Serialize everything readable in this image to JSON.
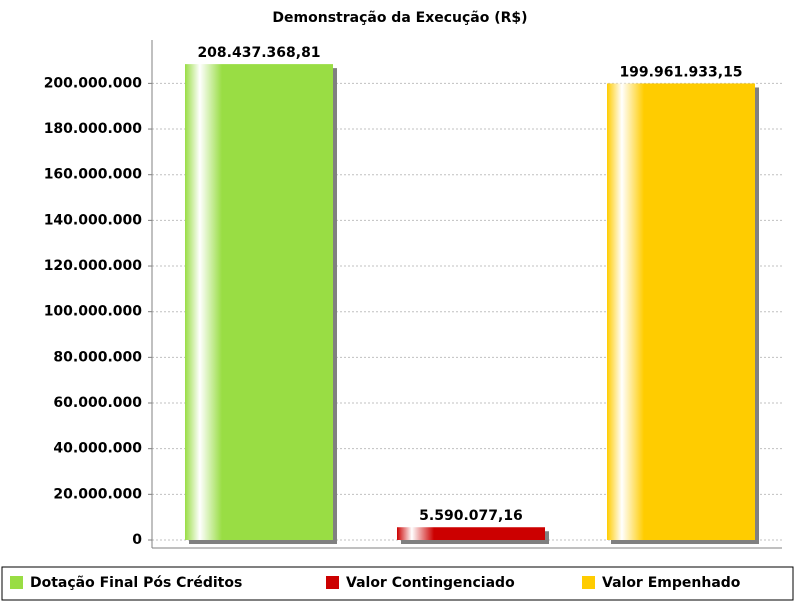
{
  "chart_data": {
    "type": "bar",
    "title": "Demonstração da Execução (R$)",
    "series": [
      {
        "name": "Dotação Final Pós Créditos",
        "color": "#99dd44",
        "values": [
          208437368.81
        ],
        "value_labels": [
          "208.437.368,81"
        ]
      },
      {
        "name": "Valor Contingenciado",
        "color": "#cc0000",
        "values": [
          5590077.16
        ],
        "value_labels": [
          "5.590.077,16"
        ]
      },
      {
        "name": "Valor Empenhado",
        "color": "#ffcc00",
        "values": [
          199961933.15
        ],
        "value_labels": [
          "199.961.933,15"
        ]
      }
    ],
    "ylim": [
      0,
      219000000
    ],
    "yticks": [
      0,
      {
        "value": 20000000,
        "label": "20.000.000"
      },
      {
        "value": 40000000,
        "label": "40.000.000"
      },
      {
        "value": 60000000,
        "label": "60.000.000"
      },
      {
        "value": 80000000,
        "label": "80.000.000"
      },
      {
        "value": 100000000,
        "label": "100.000.000"
      },
      {
        "value": 120000000,
        "label": "120.000.000"
      },
      {
        "value": 140000000,
        "label": "140.000.000"
      },
      {
        "value": 160000000,
        "label": "160.000.000"
      },
      {
        "value": 180000000,
        "label": "180.000.000"
      },
      {
        "value": 200000000,
        "label": "200.000.000"
      }
    ],
    "grid": true,
    "legend": "bottom"
  }
}
